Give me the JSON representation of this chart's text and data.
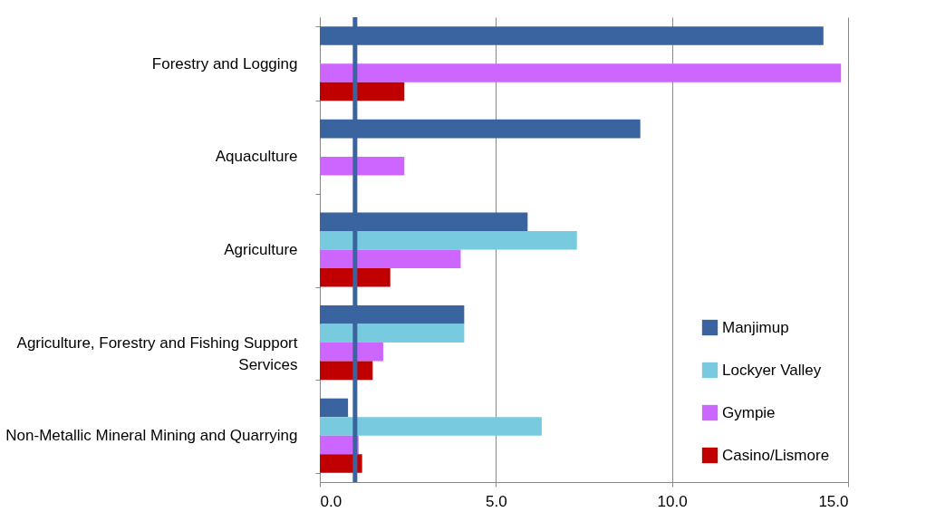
{
  "chart_data": {
    "type": "bar",
    "orientation": "horizontal",
    "categories": [
      "Forestry and Logging",
      "Aquaculture",
      "Agriculture",
      "Agriculture, Forestry and  Fishing Support Services",
      "Non-Metallic Mineral Mining and Quarrying"
    ],
    "series": [
      {
        "name": "Manjimup",
        "color": "#3a64a0",
        "values": [
          14.3,
          9.1,
          5.9,
          4.1,
          0.8
        ]
      },
      {
        "name": "Lockyer Valley",
        "color": "#78cadf",
        "values": [
          null,
          null,
          7.3,
          4.1,
          6.3
        ]
      },
      {
        "name": "Gympie",
        "color": "#cc66ff",
        "values": [
          14.8,
          2.4,
          4.0,
          1.8,
          1.1
        ]
      },
      {
        "name": "Casino/Lismore",
        "color": "#c00000",
        "values": [
          2.4,
          null,
          2.0,
          1.5,
          1.2
        ]
      }
    ],
    "xlim": [
      0,
      15
    ],
    "xticks": [
      {
        "value": 0,
        "label": "0.0"
      },
      {
        "value": 5,
        "label": "5.0"
      },
      {
        "value": 10,
        "label": "10.0"
      },
      {
        "value": 15,
        "label": "15.0"
      }
    ],
    "ref_lines": [
      {
        "axis": "x",
        "value": 1.0,
        "color": "#3a64a0"
      }
    ],
    "grid": "x",
    "legend": "bottom right"
  }
}
